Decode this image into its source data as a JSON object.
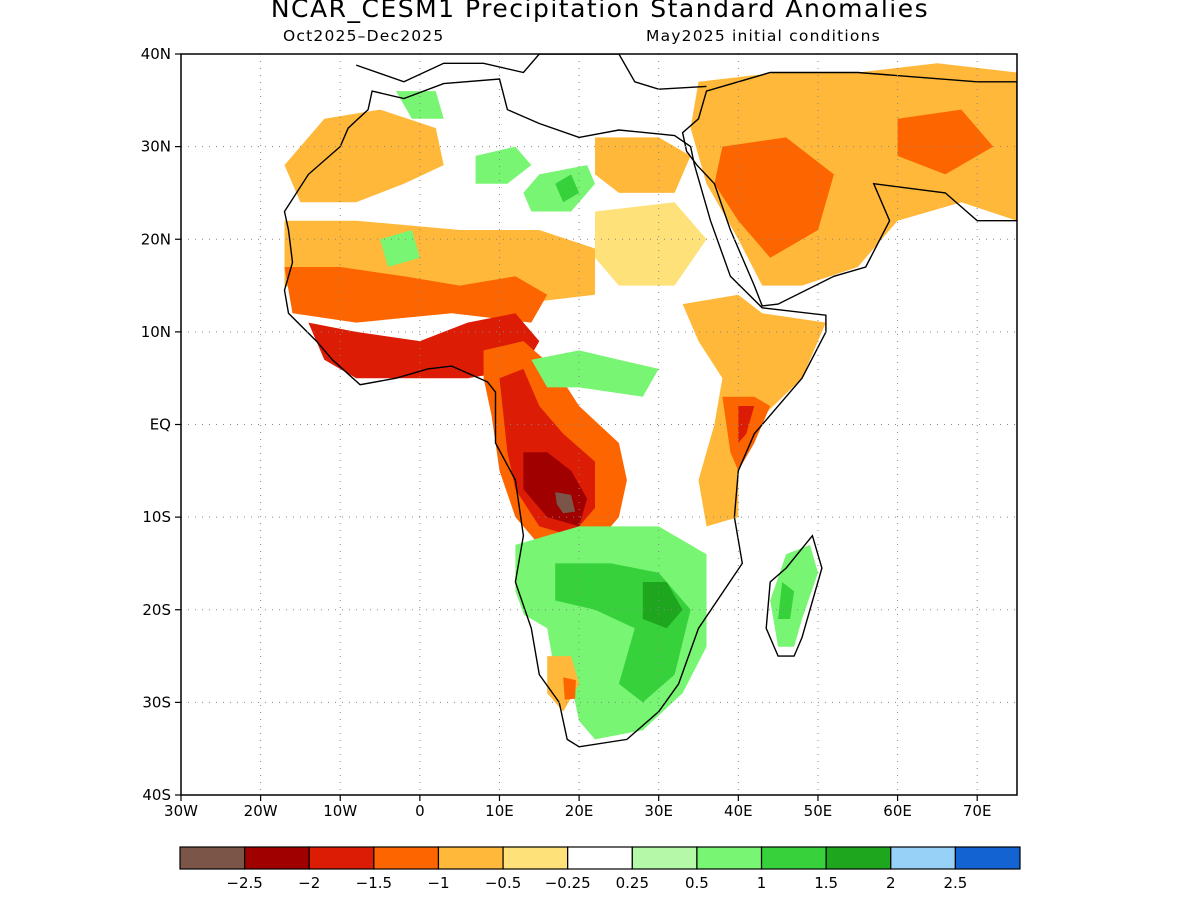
{
  "title": "NCAR_CESM1 Precipitation Standard Anomalies",
  "subtitle_left": "Oct2025–Dec2025",
  "subtitle_right": "May2025 initial conditions",
  "map": {
    "lon_range": [
      -30,
      75
    ],
    "lat_range": [
      -40,
      40
    ],
    "x_ticks": [
      {
        "lon": -30,
        "label": "30W"
      },
      {
        "lon": -20,
        "label": "20W"
      },
      {
        "lon": -10,
        "label": "10W"
      },
      {
        "lon": 0,
        "label": "0"
      },
      {
        "lon": 10,
        "label": "10E"
      },
      {
        "lon": 20,
        "label": "20E"
      },
      {
        "lon": 30,
        "label": "30E"
      },
      {
        "lon": 40,
        "label": "40E"
      },
      {
        "lon": 50,
        "label": "50E"
      },
      {
        "lon": 60,
        "label": "60E"
      },
      {
        "lon": 70,
        "label": "70E"
      }
    ],
    "y_ticks": [
      {
        "lat": 40,
        "label": "40N"
      },
      {
        "lat": 30,
        "label": "30N"
      },
      {
        "lat": 20,
        "label": "20N"
      },
      {
        "lat": 10,
        "label": "10N"
      },
      {
        "lat": 0,
        "label": "EQ"
      },
      {
        "lat": -10,
        "label": "10S"
      },
      {
        "lat": -20,
        "label": "20S"
      },
      {
        "lat": -30,
        "label": "30S"
      },
      {
        "lat": -40,
        "label": "40S"
      }
    ],
    "grid": "dotted"
  },
  "colorbar": {
    "colors": [
      "#7a5548",
      "#a00000",
      "#dd1c05",
      "#fd6500",
      "#ffb83a",
      "#ffe179",
      "#ffffff",
      "#b5f8a8",
      "#78f572",
      "#37d13c",
      "#1ea71e",
      "#97d1f8",
      "#1463d2"
    ],
    "labels": [
      "−2.5",
      "−2",
      "−1.5",
      "−1",
      "−0.5",
      "−0.25",
      "0.25",
      "0.5",
      "1",
      "1.5",
      "2",
      "2.5"
    ]
  },
  "anomaly_regions": [
    {
      "name": "sahara-north-dry",
      "class": 4,
      "points": [
        [
          -12,
          33
        ],
        [
          -5,
          34
        ],
        [
          2,
          32
        ],
        [
          3,
          28
        ],
        [
          -2,
          26
        ],
        [
          -8,
          24
        ],
        [
          -15,
          24
        ],
        [
          -17,
          28
        ]
      ]
    },
    {
      "name": "west-sahel-dry",
      "class": 4,
      "points": [
        [
          -17,
          22
        ],
        [
          -8,
          22
        ],
        [
          5,
          21
        ],
        [
          15,
          21
        ],
        [
          22,
          19
        ],
        [
          22,
          14
        ],
        [
          12,
          13
        ],
        [
          0,
          13
        ],
        [
          -10,
          13
        ],
        [
          -17,
          15
        ]
      ]
    },
    {
      "name": "west-sahel-core",
      "class": 3,
      "points": [
        [
          -17,
          17
        ],
        [
          -10,
          17
        ],
        [
          -2,
          16
        ],
        [
          5,
          15
        ],
        [
          12,
          16
        ],
        [
          16,
          14
        ],
        [
          14,
          11
        ],
        [
          4,
          12
        ],
        [
          -8,
          11
        ],
        [
          -16,
          12
        ]
      ]
    },
    {
      "name": "gulf-guinea-dry",
      "class": 2,
      "points": [
        [
          -14,
          11
        ],
        [
          -8,
          10
        ],
        [
          0,
          9
        ],
        [
          6,
          11
        ],
        [
          12,
          12
        ],
        [
          15,
          9
        ],
        [
          13,
          6
        ],
        [
          6,
          5
        ],
        [
          -2,
          5
        ],
        [
          -8,
          5
        ],
        [
          -12,
          7
        ]
      ]
    },
    {
      "name": "congo-dry-band",
      "class": 3,
      "points": [
        [
          8,
          8
        ],
        [
          13,
          9
        ],
        [
          17,
          6
        ],
        [
          20,
          2
        ],
        [
          25,
          -2
        ],
        [
          26,
          -6
        ],
        [
          25,
          -10
        ],
        [
          21,
          -14
        ],
        [
          16,
          -14
        ],
        [
          12,
          -10
        ],
        [
          10,
          -5
        ],
        [
          9,
          1
        ],
        [
          8,
          5
        ]
      ]
    },
    {
      "name": "congo-core",
      "class": 2,
      "points": [
        [
          10,
          5
        ],
        [
          13,
          6
        ],
        [
          15,
          2
        ],
        [
          18,
          -1
        ],
        [
          22,
          -4
        ],
        [
          22,
          -9
        ],
        [
          19,
          -12
        ],
        [
          15,
          -11
        ],
        [
          12,
          -7
        ],
        [
          11,
          -3
        ]
      ]
    },
    {
      "name": "angola-core",
      "class": 1,
      "points": [
        [
          13,
          -3
        ],
        [
          16,
          -3
        ],
        [
          19,
          -5
        ],
        [
          21,
          -8
        ],
        [
          20,
          -11
        ],
        [
          16,
          -10
        ],
        [
          13,
          -7
        ]
      ]
    },
    {
      "name": "angola-peak",
      "class": 0,
      "points": [
        [
          17,
          -7.3
        ],
        [
          19,
          -7.6
        ],
        [
          19.5,
          -9.4
        ],
        [
          18,
          -9.6
        ],
        [
          17.2,
          -8.6
        ]
      ]
    },
    {
      "name": "east-africa-dry",
      "class": 4,
      "points": [
        [
          33,
          13
        ],
        [
          40,
          14
        ],
        [
          43,
          12
        ],
        [
          51,
          11
        ],
        [
          48,
          5
        ],
        [
          42,
          0
        ],
        [
          40,
          -4
        ],
        [
          40,
          -10
        ],
        [
          36,
          -11
        ],
        [
          35,
          -6
        ],
        [
          37,
          0
        ],
        [
          38,
          5
        ],
        [
          35,
          9
        ]
      ]
    },
    {
      "name": "kenya-coast-core",
      "class": 3,
      "points": [
        [
          38,
          3
        ],
        [
          42,
          3
        ],
        [
          44,
          2
        ],
        [
          42,
          -2
        ],
        [
          40,
          -5
        ],
        [
          39,
          -3
        ]
      ]
    },
    {
      "name": "kenya-coast-peak",
      "class": 2,
      "points": [
        [
          40,
          2
        ],
        [
          42,
          2
        ],
        [
          41,
          -1
        ],
        [
          40,
          -2
        ]
      ]
    },
    {
      "name": "arabia-dry",
      "class": 4,
      "points": [
        [
          35,
          37
        ],
        [
          45,
          38
        ],
        [
          55,
          38
        ],
        [
          65,
          39
        ],
        [
          75,
          38
        ],
        [
          75,
          22
        ],
        [
          68,
          24
        ],
        [
          60,
          22
        ],
        [
          55,
          17
        ],
        [
          48,
          15
        ],
        [
          43,
          15
        ],
        [
          40,
          20
        ],
        [
          36,
          26
        ],
        [
          34,
          32
        ]
      ]
    },
    {
      "name": "arabia-core",
      "class": 3,
      "points": [
        [
          38,
          30
        ],
        [
          46,
          31
        ],
        [
          52,
          27
        ],
        [
          50,
          21
        ],
        [
          44,
          18
        ],
        [
          40,
          22
        ],
        [
          37,
          26
        ]
      ]
    },
    {
      "name": "iran-core",
      "class": 3,
      "points": [
        [
          60,
          33
        ],
        [
          68,
          34
        ],
        [
          72,
          30
        ],
        [
          66,
          27
        ],
        [
          60,
          29
        ]
      ]
    },
    {
      "name": "north-libya-dry",
      "class": 4,
      "points": [
        [
          22,
          31
        ],
        [
          30,
          31
        ],
        [
          34,
          29
        ],
        [
          32,
          25
        ],
        [
          25,
          25
        ],
        [
          22,
          27
        ]
      ]
    },
    {
      "name": "south-sahara-yellow",
      "class": 5,
      "points": [
        [
          22,
          23
        ],
        [
          32,
          24
        ],
        [
          36,
          20
        ],
        [
          32,
          15
        ],
        [
          25,
          15
        ],
        [
          22,
          18
        ]
      ]
    },
    {
      "name": "sahara-wet-1",
      "class": 8,
      "points": [
        [
          7,
          29
        ],
        [
          12,
          30
        ],
        [
          14,
          28
        ],
        [
          11,
          26
        ],
        [
          7,
          26
        ]
      ]
    },
    {
      "name": "sahara-wet-2",
      "class": 8,
      "points": [
        [
          15,
          27
        ],
        [
          21,
          28
        ],
        [
          22,
          26
        ],
        [
          19,
          23
        ],
        [
          14,
          23
        ],
        [
          13,
          25
        ]
      ]
    },
    {
      "name": "sahara-wet-core",
      "class": 9,
      "points": [
        [
          17,
          26
        ],
        [
          19,
          27
        ],
        [
          20,
          25
        ],
        [
          18,
          24
        ]
      ]
    },
    {
      "name": "morocco-wet",
      "class": 8,
      "points": [
        [
          -3,
          36
        ],
        [
          2,
          36
        ],
        [
          3,
          33
        ],
        [
          -1,
          33
        ]
      ]
    },
    {
      "name": "mauritania-wet",
      "class": 8,
      "points": [
        [
          -5,
          20
        ],
        [
          -1,
          21
        ],
        [
          0,
          18
        ],
        [
          -4,
          17
        ]
      ]
    },
    {
      "name": "chad-wet",
      "class": 8,
      "points": [
        [
          14,
          7
        ],
        [
          20,
          8
        ],
        [
          25,
          7
        ],
        [
          30,
          6
        ],
        [
          28,
          3
        ],
        [
          20,
          4
        ],
        [
          16,
          4
        ]
      ]
    },
    {
      "name": "south-africa-wet",
      "class": 8,
      "points": [
        [
          12,
          -13
        ],
        [
          20,
          -11
        ],
        [
          30,
          -11
        ],
        [
          36,
          -14
        ],
        [
          36,
          -24
        ],
        [
          33,
          -29
        ],
        [
          28,
          -33
        ],
        [
          22,
          -34
        ],
        [
          20,
          -32
        ],
        [
          19,
          -28
        ],
        [
          15,
          -25
        ],
        [
          12,
          -18
        ]
      ]
    },
    {
      "name": "south-africa-core",
      "class": 9,
      "points": [
        [
          17,
          -15
        ],
        [
          24,
          -15
        ],
        [
          30,
          -16
        ],
        [
          34,
          -20
        ],
        [
          32,
          -27
        ],
        [
          28,
          -30
        ],
        [
          25,
          -28
        ],
        [
          27,
          -22
        ],
        [
          22,
          -20
        ],
        [
          17,
          -19
        ]
      ]
    },
    {
      "name": "zimbabwe-peak",
      "class": 10,
      "points": [
        [
          28,
          -17
        ],
        [
          31,
          -17
        ],
        [
          33,
          -20
        ],
        [
          31,
          -22
        ],
        [
          28,
          -21
        ]
      ]
    },
    {
      "name": "namibia-white",
      "class": 6,
      "points": [
        [
          12,
          -20
        ],
        [
          16,
          -22
        ],
        [
          17,
          -27
        ],
        [
          15,
          -29
        ],
        [
          12,
          -26
        ]
      ]
    },
    {
      "name": "namibia-dry",
      "class": 4,
      "points": [
        [
          16,
          -25
        ],
        [
          19,
          -25
        ],
        [
          20,
          -28
        ],
        [
          18,
          -31
        ],
        [
          16,
          -29
        ]
      ]
    },
    {
      "name": "namibia-core",
      "class": 3,
      "points": [
        [
          18,
          -27.3
        ],
        [
          19.6,
          -27.6
        ],
        [
          19.5,
          -29.6
        ],
        [
          18.2,
          -29.7
        ]
      ]
    },
    {
      "name": "madagascar-wet",
      "class": 8,
      "points": [
        [
          46,
          -14
        ],
        [
          49,
          -13
        ],
        [
          50,
          -16
        ],
        [
          48,
          -21
        ],
        [
          47,
          -24
        ],
        [
          45,
          -24
        ],
        [
          44,
          -19
        ]
      ]
    },
    {
      "name": "madagascar-core",
      "class": 9,
      "points": [
        [
          45.5,
          -17
        ],
        [
          47,
          -18
        ],
        [
          46.5,
          -21
        ],
        [
          45,
          -21
        ]
      ]
    }
  ],
  "coastline": [
    [
      -6,
      36
    ],
    [
      -2,
      35.2
    ],
    [
      3,
      36.8
    ],
    [
      10,
      37.3
    ],
    [
      11,
      34
    ],
    [
      15,
      32.5
    ],
    [
      20,
      31
    ],
    [
      25,
      31.8
    ],
    [
      32,
      31.2
    ],
    [
      34,
      30
    ],
    [
      34.5,
      28
    ],
    [
      36.5,
      22
    ],
    [
      39,
      16
    ],
    [
      43,
      12.6
    ],
    [
      51,
      11.8
    ],
    [
      51,
      10
    ],
    [
      48,
      5
    ],
    [
      42,
      -1
    ],
    [
      40,
      -5
    ],
    [
      39.5,
      -10
    ],
    [
      40.5,
      -15
    ],
    [
      35,
      -22
    ],
    [
      32.5,
      -28
    ],
    [
      30,
      -31
    ],
    [
      26,
      -34
    ],
    [
      20,
      -34.8
    ],
    [
      18.5,
      -34
    ],
    [
      17.5,
      -30
    ],
    [
      15,
      -27
    ],
    [
      14,
      -22
    ],
    [
      12,
      -17
    ],
    [
      13,
      -12
    ],
    [
      12,
      -6
    ],
    [
      9.5,
      -2
    ],
    [
      9.5,
      3.5
    ],
    [
      8.5,
      4.6
    ],
    [
      4,
      6.3
    ],
    [
      1,
      6
    ],
    [
      -3,
      5
    ],
    [
      -7.5,
      4.3
    ],
    [
      -11,
      7
    ],
    [
      -13,
      9
    ],
    [
      -16.5,
      12
    ],
    [
      -17,
      14.5
    ],
    [
      -16,
      17.5
    ],
    [
      -16.5,
      21
    ],
    [
      -17,
      23
    ],
    [
      -14,
      27
    ],
    [
      -10,
      30
    ],
    [
      -9,
      32
    ],
    [
      -6.5,
      34
    ]
  ],
  "arabia_coast": [
    [
      33,
      31.5
    ],
    [
      35,
      33
    ],
    [
      36,
      36
    ],
    [
      44,
      38
    ],
    [
      55,
      38
    ],
    [
      70,
      37
    ],
    [
      75,
      37
    ],
    [
      75,
      22
    ],
    [
      70,
      22
    ],
    [
      66,
      25
    ],
    [
      57,
      26
    ],
    [
      59,
      22
    ],
    [
      56,
      17
    ],
    [
      52,
      16
    ],
    [
      45,
      13
    ],
    [
      43,
      12.8
    ],
    [
      42,
      15
    ],
    [
      39,
      21
    ],
    [
      37,
      26
    ],
    [
      34.8,
      28
    ],
    [
      33.5,
      29.5
    ]
  ],
  "madagascar_coast": [
    [
      49.3,
      -12
    ],
    [
      50.5,
      -15.5
    ],
    [
      48,
      -23
    ],
    [
      47,
      -25
    ],
    [
      45,
      -25
    ],
    [
      43.5,
      -22
    ],
    [
      44,
      -17
    ],
    [
      46,
      -15.5
    ]
  ],
  "med_coast_north": [
    [
      -8,
      38.8
    ],
    [
      -2,
      37
    ],
    [
      3,
      39
    ],
    [
      8,
      39
    ],
    [
      13,
      38
    ],
    [
      15,
      40
    ],
    [
      25,
      40
    ],
    [
      27,
      37
    ],
    [
      30,
      36.2
    ],
    [
      36,
      36.5
    ]
  ]
}
